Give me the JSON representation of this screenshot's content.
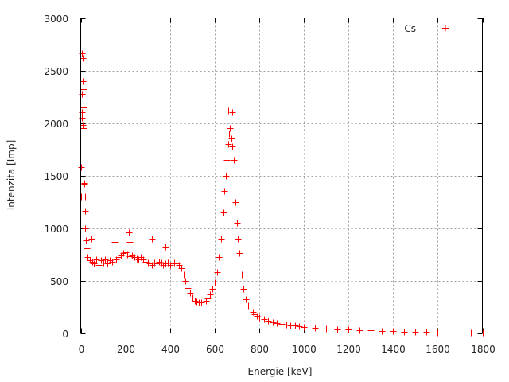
{
  "chart_data": {
    "type": "scatter",
    "title": "",
    "xlabel": "Energie [keV]",
    "ylabel": "Intenzita [Imp]",
    "xlim": [
      0,
      1800
    ],
    "ylim": [
      0,
      3000
    ],
    "xticks": [
      "0",
      "200",
      "400",
      "600",
      "800",
      "1000",
      "1200",
      "1400",
      "1600",
      "1800"
    ],
    "yticks": [
      "0",
      "500",
      "1000",
      "1500",
      "2000",
      "2500",
      "3000"
    ],
    "grid": true,
    "legend_position": "top-right",
    "marker": "plus",
    "series": [
      {
        "name": "Cs",
        "color": "#ff0000",
        "points": [
          [
            2,
            1300
          ],
          [
            3,
            1580
          ],
          [
            4,
            2050
          ],
          [
            5,
            2280
          ],
          [
            6,
            2660
          ],
          [
            7,
            2100
          ],
          [
            8,
            1980
          ],
          [
            9,
            2620
          ],
          [
            10,
            2400
          ],
          [
            11,
            2320
          ],
          [
            12,
            2150
          ],
          [
            13,
            1950
          ],
          [
            14,
            1860
          ],
          [
            15,
            1430
          ],
          [
            17,
            1420
          ],
          [
            18,
            1300
          ],
          [
            19,
            1160
          ],
          [
            20,
            1000
          ],
          [
            22,
            880
          ],
          [
            25,
            810
          ],
          [
            30,
            720
          ],
          [
            40,
            690
          ],
          [
            48,
            900
          ],
          [
            50,
            680
          ],
          [
            60,
            660
          ],
          [
            70,
            700
          ],
          [
            80,
            650
          ],
          [
            90,
            690
          ],
          [
            100,
            670
          ],
          [
            110,
            700
          ],
          [
            120,
            660
          ],
          [
            130,
            690
          ],
          [
            140,
            680
          ],
          [
            150,
            670
          ],
          [
            150,
            870
          ],
          [
            160,
            700
          ],
          [
            170,
            720
          ],
          [
            180,
            740
          ],
          [
            190,
            760
          ],
          [
            200,
            770
          ],
          [
            210,
            750
          ],
          [
            215,
            960
          ],
          [
            220,
            730
          ],
          [
            220,
            870
          ],
          [
            230,
            740
          ],
          [
            240,
            720
          ],
          [
            250,
            710
          ],
          [
            260,
            700
          ],
          [
            270,
            720
          ],
          [
            280,
            700
          ],
          [
            290,
            680
          ],
          [
            300,
            670
          ],
          [
            310,
            660
          ],
          [
            320,
            650
          ],
          [
            320,
            900
          ],
          [
            330,
            670
          ],
          [
            340,
            660
          ],
          [
            350,
            680
          ],
          [
            360,
            670
          ],
          [
            370,
            650
          ],
          [
            380,
            660
          ],
          [
            380,
            820
          ],
          [
            390,
            670
          ],
          [
            400,
            650
          ],
          [
            410,
            660
          ],
          [
            420,
            670
          ],
          [
            430,
            660
          ],
          [
            440,
            650
          ],
          [
            450,
            620
          ],
          [
            460,
            560
          ],
          [
            470,
            500
          ],
          [
            480,
            430
          ],
          [
            490,
            380
          ],
          [
            500,
            340
          ],
          [
            510,
            310
          ],
          [
            520,
            300
          ],
          [
            530,
            290
          ],
          [
            540,
            295
          ],
          [
            550,
            300
          ],
          [
            560,
            310
          ],
          [
            570,
            330
          ],
          [
            580,
            370
          ],
          [
            590,
            420
          ],
          [
            600,
            480
          ],
          [
            610,
            580
          ],
          [
            620,
            720
          ],
          [
            630,
            900
          ],
          [
            640,
            1150
          ],
          [
            645,
            1350
          ],
          [
            650,
            1500
          ],
          [
            655,
            1650
          ],
          [
            655,
            2750
          ],
          [
            655,
            710
          ],
          [
            660,
            1800
          ],
          [
            660,
            2120
          ],
          [
            665,
            1900
          ],
          [
            670,
            1950
          ],
          [
            675,
            1850
          ],
          [
            680,
            1780
          ],
          [
            680,
            2100
          ],
          [
            685,
            1650
          ],
          [
            690,
            1450
          ],
          [
            695,
            1250
          ],
          [
            700,
            1050
          ],
          [
            705,
            900
          ],
          [
            710,
            760
          ],
          [
            720,
            560
          ],
          [
            730,
            420
          ],
          [
            740,
            320
          ],
          [
            750,
            260
          ],
          [
            760,
            220
          ],
          [
            770,
            200
          ],
          [
            780,
            180
          ],
          [
            790,
            165
          ],
          [
            800,
            150
          ],
          [
            820,
            130
          ],
          [
            840,
            115
          ],
          [
            860,
            105
          ],
          [
            880,
            95
          ],
          [
            900,
            85
          ],
          [
            920,
            80
          ],
          [
            940,
            75
          ],
          [
            960,
            70
          ],
          [
            980,
            65
          ],
          [
            1000,
            60
          ],
          [
            1050,
            50
          ],
          [
            1100,
            42
          ],
          [
            1150,
            36
          ],
          [
            1200,
            32
          ],
          [
            1250,
            28
          ],
          [
            1300,
            25
          ],
          [
            1350,
            22
          ],
          [
            1400,
            18
          ],
          [
            1450,
            14
          ],
          [
            1500,
            10
          ],
          [
            1550,
            8
          ],
          [
            1600,
            6
          ],
          [
            1650,
            5
          ],
          [
            1700,
            4
          ],
          [
            1750,
            3
          ],
          [
            1800,
            3
          ]
        ]
      }
    ]
  }
}
